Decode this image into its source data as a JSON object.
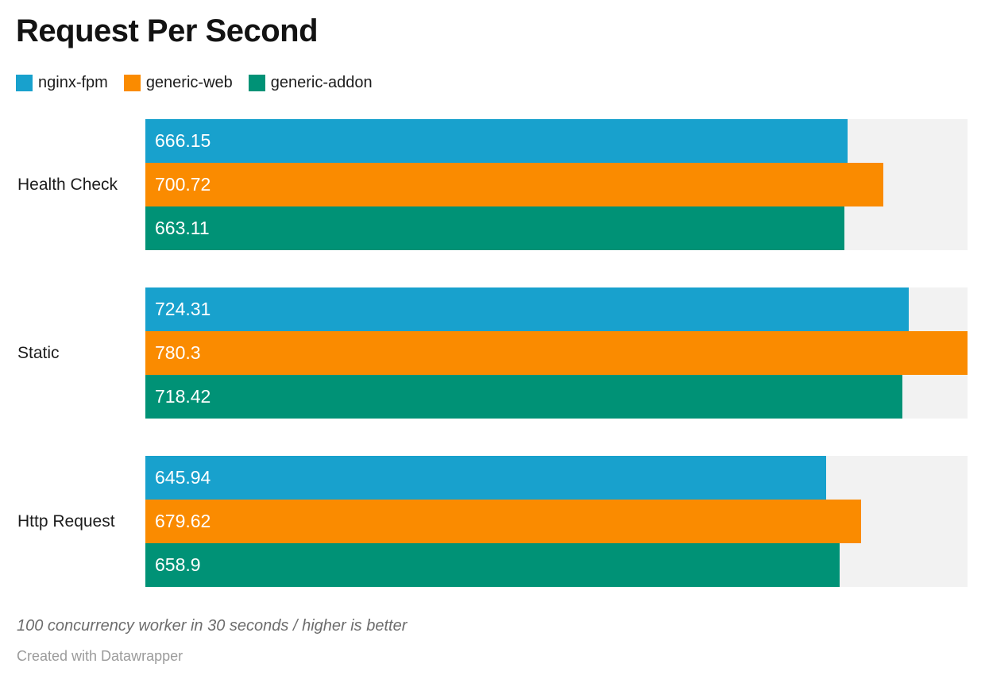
{
  "footer": {
    "note": "100 concurrency worker in 30 seconds / higher is better",
    "attribution": "Created with Datawrapper"
  },
  "colors": {
    "nginx_fpm": "#18a1cd",
    "generic_web": "#fa8b00",
    "generic_addon": "#009276",
    "bar_track": "#f2f2f2",
    "title_text": "#131313",
    "label_text": "#1d1d1d",
    "value_text": "#ffffff",
    "note_text": "#6d6d6d",
    "attribution_text": "#9b9b9b"
  },
  "chart_data": {
    "type": "bar",
    "orientation": "horizontal",
    "title": "Request Per Second",
    "categories": [
      "Health Check",
      "Static",
      "Http Request"
    ],
    "series": [
      {
        "name": "nginx-fpm",
        "color": "#18a1cd",
        "values": [
          666.15,
          724.31,
          645.94
        ],
        "labels": [
          "666.15",
          "724.31",
          "645.94"
        ]
      },
      {
        "name": "generic-web",
        "color": "#fa8b00",
        "values": [
          700.72,
          780.3,
          679.62
        ],
        "labels": [
          "700.72",
          "780.3",
          "679.62"
        ]
      },
      {
        "name": "generic-addon",
        "color": "#009276",
        "values": [
          663.11,
          718.42,
          658.9
        ],
        "labels": [
          "663.11",
          "718.42",
          "658.9"
        ]
      }
    ],
    "xlim": [
      0,
      780.3
    ],
    "value_labels": "inside-start",
    "legend_position": "top",
    "grid": false,
    "axis_ticks": "none",
    "track_color": "#f2f2f2"
  }
}
